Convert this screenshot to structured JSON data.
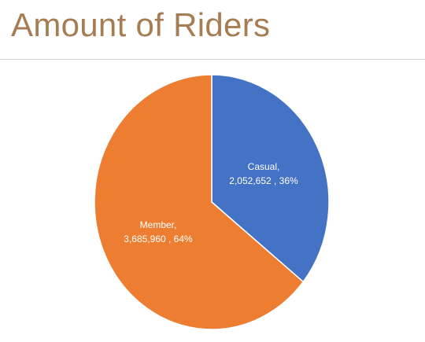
{
  "page": {
    "title": "Amount of Riders"
  },
  "chart_data": {
    "type": "pie",
    "categories": [
      "Casual",
      "Member"
    ],
    "values": [
      2052652,
      3685960
    ],
    "percentages": [
      "36%",
      "64%"
    ],
    "labels": [
      {
        "name": "Casual,",
        "detail": "2,052,652 , 36%"
      },
      {
        "name": "Member,",
        "detail": "3,685,960 , 64%"
      }
    ],
    "colors": [
      "#4472c4",
      "#ed7d31"
    ],
    "legend": "none"
  }
}
